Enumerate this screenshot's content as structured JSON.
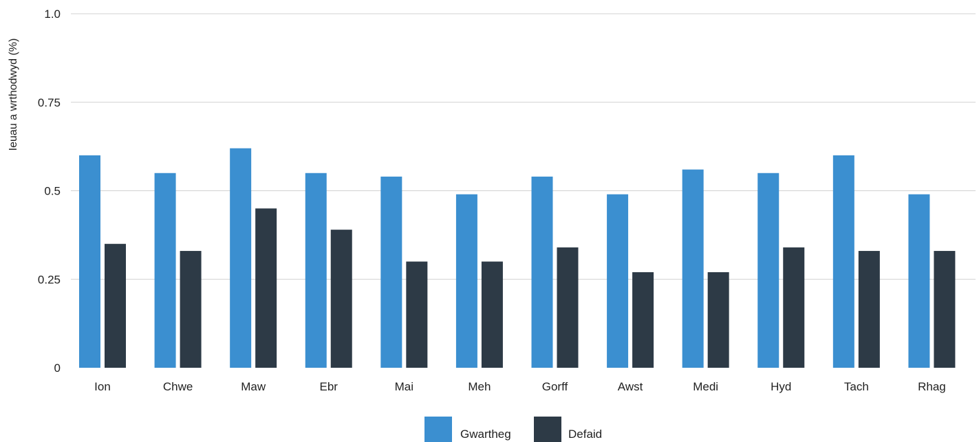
{
  "chart_data": {
    "type": "bar",
    "title": "",
    "xlabel": "",
    "ylabel": "Ieuau a wrthodwyd (%)",
    "categories": [
      "Ion",
      "Chwe",
      "Maw",
      "Ebr",
      "Mai",
      "Meh",
      "Gorff",
      "Awst",
      "Medi",
      "Hyd",
      "Tach",
      "Rhag"
    ],
    "series": [
      {
        "name": "Gwartheg",
        "color": "#3b8fd0",
        "values": [
          0.6,
          0.55,
          0.62,
          0.55,
          0.54,
          0.49,
          0.54,
          0.49,
          0.56,
          0.55,
          0.6,
          0.49
        ]
      },
      {
        "name": "Defaid",
        "color": "#2d3a46",
        "values": [
          0.35,
          0.33,
          0.45,
          0.39,
          0.3,
          0.3,
          0.34,
          0.27,
          0.27,
          0.34,
          0.33,
          0.33
        ]
      }
    ],
    "ylim": [
      0,
      1.0
    ],
    "yticks": [
      {
        "value": 0,
        "label": "0"
      },
      {
        "value": 0.25,
        "label": "0.25"
      },
      {
        "value": 0.5,
        "label": "0.5"
      },
      {
        "value": 0.75,
        "label": "0.75"
      },
      {
        "value": 1.0,
        "label": "1.0"
      }
    ],
    "grid": true,
    "legend_position": "bottom-center"
  }
}
